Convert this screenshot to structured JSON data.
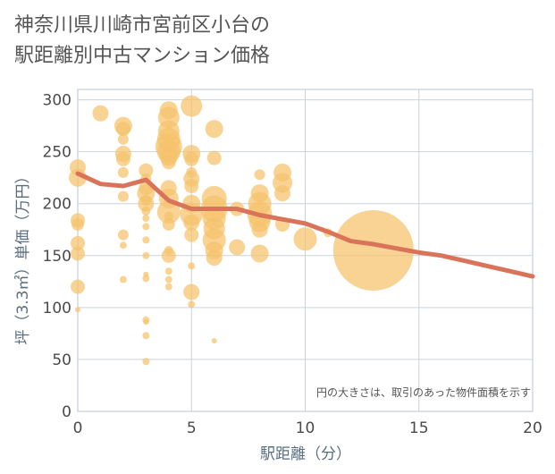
{
  "title_line1": "神奈川県川崎市宮前区小台の",
  "title_line2": "駅距離別中古マンション価格",
  "chart_data": {
    "type": "scatter",
    "xlabel": "駅距離（分）",
    "ylabel": "坪（3.3㎡）単価（万円）",
    "xlim": [
      0,
      20
    ],
    "ylim": [
      0,
      310
    ],
    "xticks": [
      0,
      5,
      10,
      15,
      20
    ],
    "yticks": [
      0,
      50,
      100,
      150,
      200,
      250,
      300
    ],
    "grid": true,
    "note": "円の大きさは、取引のあった物件面積を示す",
    "colors": {
      "bubble": "#f5c26b",
      "trend": "#d9745a",
      "grid": "#c9d3dc"
    },
    "bubbles": [
      [
        0,
        235,
        9
      ],
      [
        0,
        225,
        10
      ],
      [
        0,
        184,
        8
      ],
      [
        0,
        180,
        7
      ],
      [
        0,
        162,
        8
      ],
      [
        0,
        152,
        8
      ],
      [
        0,
        120,
        8
      ],
      [
        0,
        98,
        3
      ],
      [
        1,
        287,
        9
      ],
      [
        2,
        275,
        10
      ],
      [
        2,
        272,
        8
      ],
      [
        2,
        262,
        6
      ],
      [
        2,
        248,
        9
      ],
      [
        2,
        243,
        8
      ],
      [
        2,
        230,
        6
      ],
      [
        2,
        207,
        6
      ],
      [
        2,
        170,
        6
      ],
      [
        2,
        160,
        4
      ],
      [
        2,
        127,
        4
      ],
      [
        3,
        232,
        8
      ],
      [
        3,
        224,
        6
      ],
      [
        3,
        215,
        8
      ],
      [
        3,
        210,
        10
      ],
      [
        3,
        203,
        6
      ],
      [
        3,
        200,
        9
      ],
      [
        3,
        193,
        5
      ],
      [
        3,
        186,
        4
      ],
      [
        3,
        178,
        4
      ],
      [
        3,
        165,
        4
      ],
      [
        3,
        150,
        4
      ],
      [
        3,
        132,
        3
      ],
      [
        3,
        128,
        4
      ],
      [
        3,
        88,
        4
      ],
      [
        3,
        86,
        3
      ],
      [
        3,
        73,
        4
      ],
      [
        3,
        48,
        4
      ],
      [
        4,
        290,
        10
      ],
      [
        4,
        283,
        12
      ],
      [
        4,
        270,
        12
      ],
      [
        4,
        262,
        13
      ],
      [
        4,
        255,
        15
      ],
      [
        4,
        250,
        13
      ],
      [
        4,
        245,
        10
      ],
      [
        4,
        240,
        8
      ],
      [
        4,
        215,
        9
      ],
      [
        4,
        205,
        11
      ],
      [
        4,
        192,
        13
      ],
      [
        4,
        188,
        5
      ],
      [
        4,
        180,
        7
      ],
      [
        4,
        155,
        5
      ],
      [
        4,
        150,
        8
      ],
      [
        4,
        135,
        4
      ],
      [
        4,
        127,
        4
      ],
      [
        4,
        120,
        4
      ],
      [
        5,
        294,
        12
      ],
      [
        5,
        248,
        10
      ],
      [
        5,
        243,
        8
      ],
      [
        5,
        230,
        6
      ],
      [
        5,
        224,
        9
      ],
      [
        5,
        217,
        8
      ],
      [
        5,
        200,
        10
      ],
      [
        5,
        190,
        13
      ],
      [
        5,
        182,
        9
      ],
      [
        5,
        170,
        8
      ],
      [
        5,
        140,
        4
      ],
      [
        5,
        115,
        9
      ],
      [
        5,
        103,
        4
      ],
      [
        6,
        272,
        10
      ],
      [
        6,
        244,
        8
      ],
      [
        6,
        205,
        14
      ],
      [
        6,
        195,
        15
      ],
      [
        6,
        186,
        13
      ],
      [
        6,
        176,
        12
      ],
      [
        6,
        165,
        13
      ],
      [
        6,
        155,
        10
      ],
      [
        6,
        148,
        9
      ],
      [
        6,
        68,
        3
      ],
      [
        7,
        195,
        8
      ],
      [
        7,
        158,
        9
      ],
      [
        8,
        228,
        6
      ],
      [
        8,
        210,
        10
      ],
      [
        8,
        200,
        13
      ],
      [
        8,
        190,
        14
      ],
      [
        8,
        183,
        12
      ],
      [
        8,
        175,
        9
      ],
      [
        8,
        152,
        10
      ],
      [
        9,
        230,
        10
      ],
      [
        9,
        220,
        11
      ],
      [
        9,
        210,
        9
      ],
      [
        9,
        180,
        8
      ],
      [
        10,
        166,
        13
      ],
      [
        11,
        172,
        5
      ],
      [
        13,
        155,
        45
      ]
    ],
    "trend": [
      [
        0,
        229
      ],
      [
        1,
        219
      ],
      [
        2,
        217
      ],
      [
        3,
        223
      ],
      [
        4,
        203
      ],
      [
        5,
        195
      ],
      [
        6,
        195
      ],
      [
        7,
        195
      ],
      [
        8,
        189
      ],
      [
        9,
        185
      ],
      [
        10,
        181
      ],
      [
        11,
        173
      ],
      [
        12,
        164
      ],
      [
        13,
        161
      ],
      [
        14,
        157
      ],
      [
        15,
        153
      ],
      [
        16,
        150
      ],
      [
        17,
        145
      ],
      [
        18,
        140
      ],
      [
        19,
        135
      ],
      [
        20,
        130
      ]
    ]
  }
}
